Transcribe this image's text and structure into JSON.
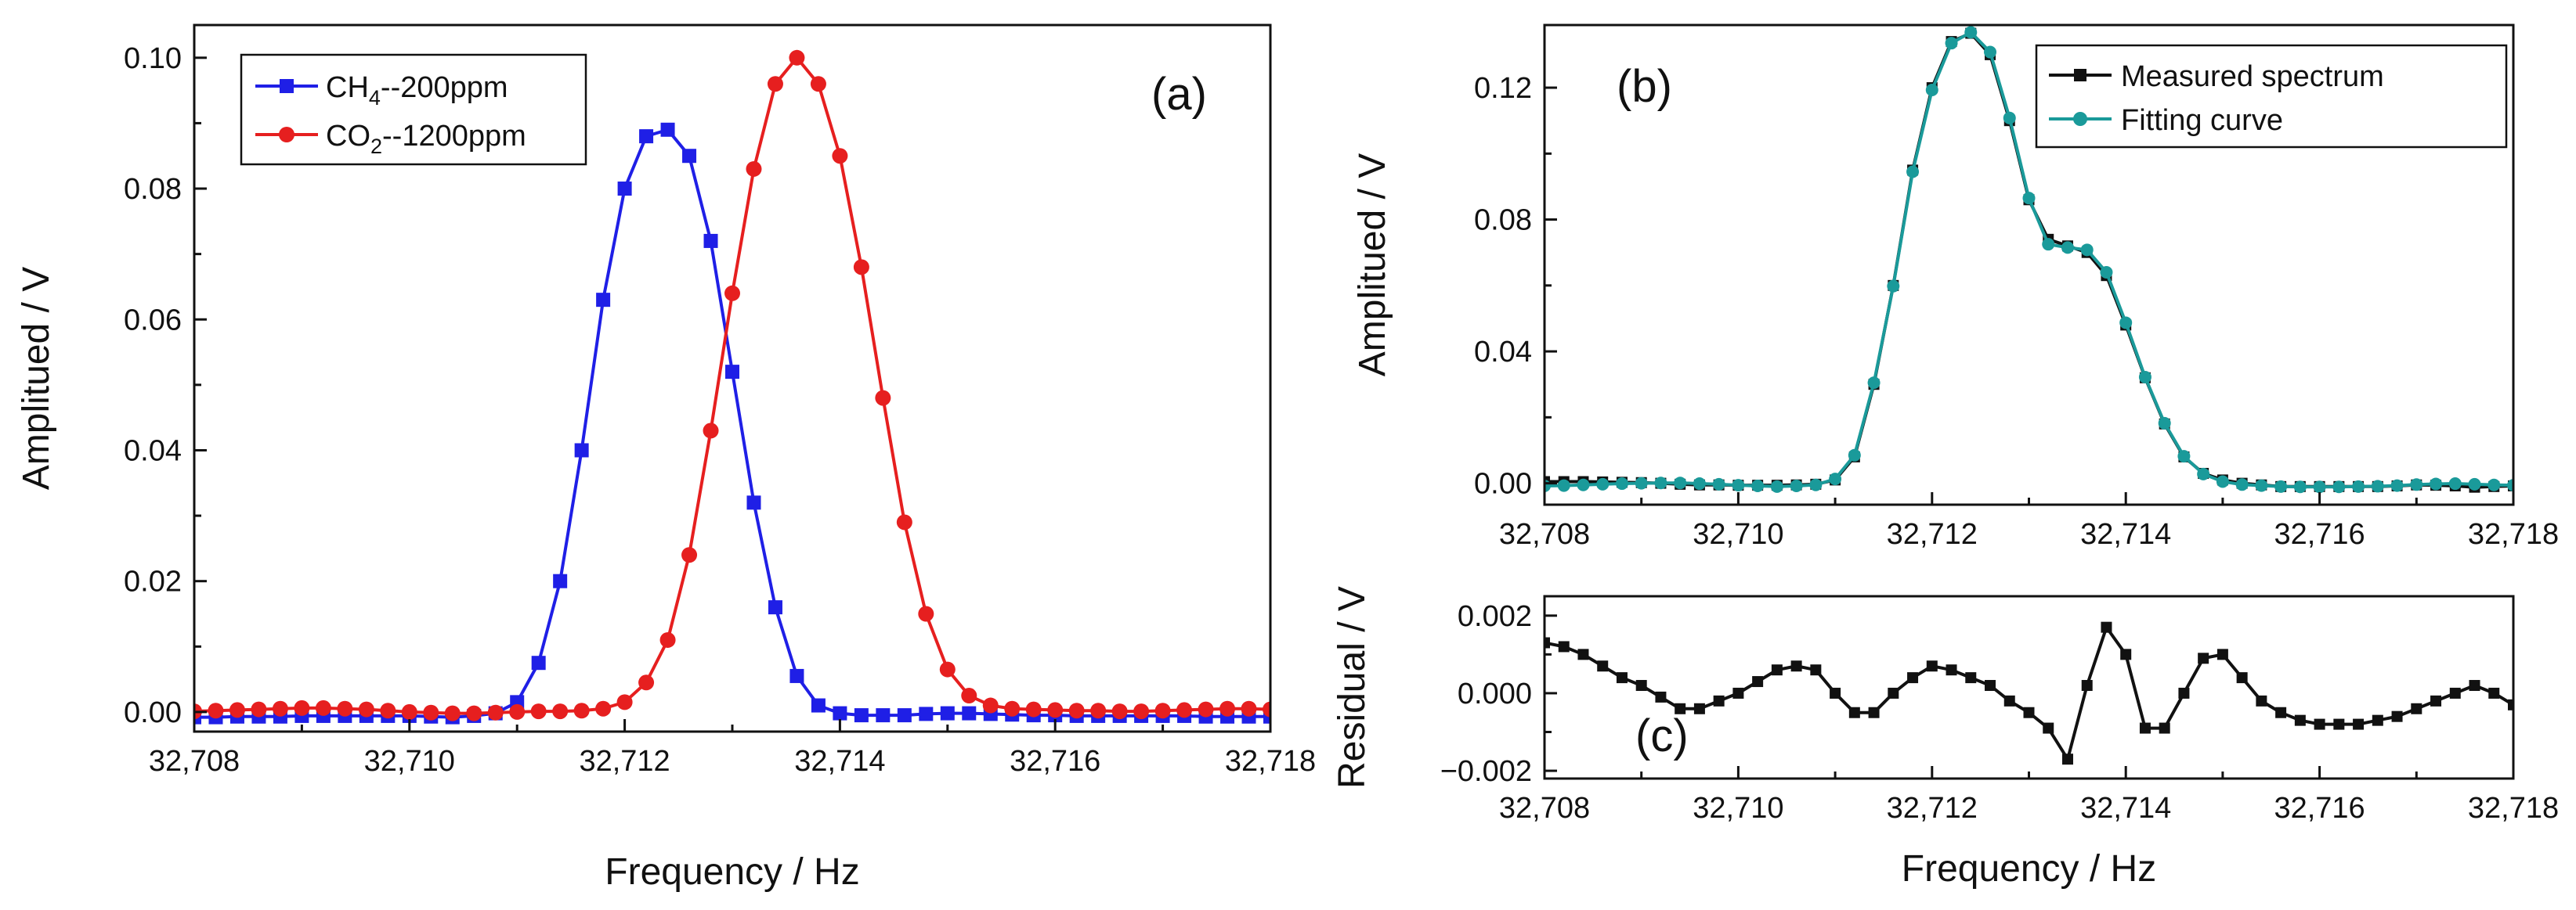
{
  "chart_data": [
    {
      "panel": "a",
      "type": "line",
      "panel_label": "(a)",
      "xlabel": "Frequency / Hz",
      "ylabel": "Amplitued / V",
      "xlim": [
        32708,
        32718
      ],
      "ylim": [
        -0.003,
        0.105
      ],
      "xticks": [
        32708,
        32710,
        32712,
        32714,
        32716,
        32718
      ],
      "xtick_labels": [
        "32,708",
        "32,710",
        "32,712",
        "32,714",
        "32,716",
        "32,718"
      ],
      "yticks": [
        0.0,
        0.02,
        0.04,
        0.06,
        0.08,
        0.1
      ],
      "ytick_labels": [
        "0.00",
        "0.02",
        "0.04",
        "0.06",
        "0.08",
        "0.10"
      ],
      "legend": {
        "placement": "top-left",
        "entries": [
          "CH4--200ppm",
          "CO2--1200ppm"
        ]
      },
      "legend_parts": [
        {
          "main": "CH",
          "sub": "4",
          "rest": "--200ppm"
        },
        {
          "main": "CO",
          "sub": "2",
          "rest": "--1200ppm"
        }
      ],
      "series": [
        {
          "name": "CH4--200ppm",
          "color": "#1f1fe6",
          "marker": "square",
          "x": [
            32708.0,
            32708.2,
            32708.4,
            32708.6,
            32708.8,
            32709.0,
            32709.2,
            32709.4,
            32709.6,
            32709.8,
            32710.0,
            32710.2,
            32710.4,
            32710.6,
            32710.8,
            32711.0,
            32711.2,
            32711.4,
            32711.6,
            32711.8,
            32712.0,
            32712.2,
            32712.4,
            32712.6,
            32712.8,
            32713.0,
            32713.2,
            32713.4,
            32713.6,
            32713.8,
            32714.0,
            32714.2,
            32714.4,
            32714.6,
            32714.8,
            32715.0,
            32715.2,
            32715.4,
            32715.6,
            32715.8,
            32716.0,
            32716.2,
            32716.4,
            32716.6,
            32716.8,
            32717.0,
            32717.2,
            32717.4,
            32717.6,
            32717.8,
            32718.0
          ],
          "y": [
            -0.0008,
            -0.0008,
            -0.0007,
            -0.0007,
            -0.0007,
            -0.0006,
            -0.0006,
            -0.0006,
            -0.0006,
            -0.0006,
            -0.0006,
            -0.0007,
            -0.0008,
            -0.0006,
            -0.0002,
            0.0015,
            0.0075,
            0.02,
            0.04,
            0.063,
            0.08,
            0.088,
            0.089,
            0.085,
            0.072,
            0.052,
            0.032,
            0.016,
            0.0055,
            0.001,
            -0.0002,
            -0.0005,
            -0.0005,
            -0.0005,
            -0.0003,
            -0.0002,
            -0.0002,
            -0.0003,
            -0.0004,
            -0.0005,
            -0.0005,
            -0.0006,
            -0.0006,
            -0.0006,
            -0.0006,
            -0.0006,
            -0.0006,
            -0.0007,
            -0.0007,
            -0.0007,
            -0.0007
          ]
        },
        {
          "name": "CO2--1200ppm",
          "color": "#e61f1f",
          "marker": "circle",
          "x": [
            32708.0,
            32708.2,
            32708.4,
            32708.6,
            32708.8,
            32709.0,
            32709.2,
            32709.4,
            32709.6,
            32709.8,
            32710.0,
            32710.2,
            32710.4,
            32710.6,
            32710.8,
            32711.0,
            32711.2,
            32711.4,
            32711.6,
            32711.8,
            32712.0,
            32712.2,
            32712.4,
            32712.6,
            32712.8,
            32713.0,
            32713.2,
            32713.4,
            32713.6,
            32713.8,
            32714.0,
            32714.2,
            32714.4,
            32714.6,
            32714.8,
            32715.0,
            32715.2,
            32715.4,
            32715.6,
            32715.8,
            32716.0,
            32716.2,
            32716.4,
            32716.6,
            32716.8,
            32717.0,
            32717.2,
            32717.4,
            32717.6,
            32717.8,
            32718.0
          ],
          "y": [
            0.0001,
            0.0002,
            0.0003,
            0.0004,
            0.0005,
            0.0006,
            0.0006,
            0.0005,
            0.0004,
            0.0002,
            0.0,
            -0.0001,
            -0.0002,
            -0.0002,
            -0.0001,
            0.0,
            0.0001,
            0.0001,
            0.0002,
            0.0005,
            0.0015,
            0.0045,
            0.011,
            0.024,
            0.043,
            0.064,
            0.083,
            0.096,
            0.1,
            0.096,
            0.085,
            0.068,
            0.048,
            0.029,
            0.015,
            0.0065,
            0.0025,
            0.001,
            0.0005,
            0.0004,
            0.0003,
            0.0002,
            0.0002,
            0.0001,
            0.0001,
            0.0002,
            0.0003,
            0.0004,
            0.0005,
            0.0005,
            0.0004
          ]
        }
      ]
    },
    {
      "panel": "b",
      "type": "line",
      "panel_label": "(b)",
      "xlabel": "",
      "ylabel": "Amplitued / V",
      "xlim": [
        32708,
        32718
      ],
      "ylim": [
        -0.0065,
        0.139
      ],
      "xticks": [
        32708,
        32710,
        32712,
        32714,
        32716,
        32718
      ],
      "xtick_labels": [
        "32,708",
        "32,710",
        "32,712",
        "32,714",
        "32,716",
        "32,718"
      ],
      "yticks": [
        0.0,
        0.04,
        0.08,
        0.12
      ],
      "ytick_labels": [
        "0.00",
        "0.04",
        "0.08",
        "0.12"
      ],
      "legend": {
        "placement": "top-right",
        "entries": [
          "Measured spectrum",
          "Fitting curve"
        ]
      },
      "series": [
        {
          "name": "Measured spectrum",
          "color": "#111111",
          "marker": "square",
          "x": [
            32708.0,
            32708.2,
            32708.4,
            32708.6,
            32708.8,
            32709.0,
            32709.2,
            32709.4,
            32709.6,
            32709.8,
            32710.0,
            32710.2,
            32710.4,
            32710.6,
            32710.8,
            32711.0,
            32711.2,
            32711.4,
            32711.6,
            32711.8,
            32712.0,
            32712.2,
            32712.4,
            32712.6,
            32712.8,
            32713.0,
            32713.2,
            32713.4,
            32713.6,
            32713.8,
            32714.0,
            32714.2,
            32714.4,
            32714.6,
            32714.8,
            32715.0,
            32715.2,
            32715.4,
            32715.6,
            32715.8,
            32716.0,
            32716.2,
            32716.4,
            32716.6,
            32716.8,
            32717.0,
            32717.2,
            32717.4,
            32717.6,
            32717.8,
            32718.0
          ],
          "y": [
            0.0005,
            0.0005,
            0.0005,
            0.0004,
            0.0003,
            0.0002,
            0.0,
            -0.0003,
            -0.0005,
            -0.0005,
            -0.0006,
            -0.0006,
            -0.0006,
            -0.0005,
            -0.0003,
            0.001,
            0.008,
            0.03,
            0.06,
            0.095,
            0.12,
            0.134,
            0.1365,
            0.13,
            0.11,
            0.086,
            0.074,
            0.072,
            0.07,
            0.063,
            0.048,
            0.032,
            0.018,
            0.008,
            0.003,
            0.001,
            0.0,
            -0.0005,
            -0.001,
            -0.001,
            -0.001,
            -0.001,
            -0.001,
            -0.001,
            -0.0008,
            -0.0005,
            -0.0006,
            -0.0008,
            -0.0012,
            -0.001,
            -0.0008
          ]
        },
        {
          "name": "Fitting curve",
          "color": "#1a9a9a",
          "marker": "circle",
          "x": [
            32708.0,
            32708.2,
            32708.4,
            32708.6,
            32708.8,
            32709.0,
            32709.2,
            32709.4,
            32709.6,
            32709.8,
            32710.0,
            32710.2,
            32710.4,
            32710.6,
            32710.8,
            32711.0,
            32711.2,
            32711.4,
            32711.6,
            32711.8,
            32712.0,
            32712.2,
            32712.4,
            32712.6,
            32712.8,
            32713.0,
            32713.2,
            32713.4,
            32713.6,
            32713.8,
            32714.0,
            32714.2,
            32714.4,
            32714.6,
            32714.8,
            32715.0,
            32715.2,
            32715.4,
            32715.6,
            32715.8,
            32716.0,
            32716.2,
            32716.4,
            32716.6,
            32716.8,
            32717.0,
            32717.2,
            32717.4,
            32717.6,
            32717.8,
            32718.0
          ],
          "y": [
            -0.0008,
            -0.0007,
            -0.0005,
            -0.0003,
            -0.0001,
            0.0,
            0.0001,
            0.0001,
            -0.0001,
            -0.0003,
            -0.0006,
            -0.0008,
            -0.001,
            -0.0008,
            -0.0005,
            0.0013,
            0.0085,
            0.0305,
            0.0598,
            0.0945,
            0.1193,
            0.1335,
            0.1368,
            0.1308,
            0.1108,
            0.0865,
            0.0725,
            0.0715,
            0.0708,
            0.064,
            0.0487,
            0.0322,
            0.0182,
            0.0082,
            0.0028,
            0.0005,
            -0.0004,
            -0.0007,
            -0.001,
            -0.0011,
            -0.0011,
            -0.0011,
            -0.001,
            -0.0009,
            -0.0007,
            -0.0004,
            -0.0002,
            -0.0001,
            -0.0003,
            -0.0005,
            -0.0006
          ]
        }
      ]
    },
    {
      "panel": "c",
      "type": "line",
      "panel_label": "(c)",
      "xlabel": "Frequency / Hz",
      "ylabel": "Residual / V",
      "xlim": [
        32708,
        32718
      ],
      "ylim": [
        -0.0022,
        0.0025
      ],
      "xticks": [
        32708,
        32710,
        32712,
        32714,
        32716,
        32718
      ],
      "xtick_labels": [
        "32,708",
        "32,710",
        "32,712",
        "32,714",
        "32,716",
        "32,718"
      ],
      "yticks": [
        -0.002,
        0.0,
        0.002
      ],
      "ytick_labels": [
        "−0.002",
        "0.000",
        "0.002"
      ],
      "series": [
        {
          "name": "Residual",
          "color": "#111111",
          "marker": "square",
          "x": [
            32708.0,
            32708.2,
            32708.4,
            32708.6,
            32708.8,
            32709.0,
            32709.2,
            32709.4,
            32709.6,
            32709.8,
            32710.0,
            32710.2,
            32710.4,
            32710.6,
            32710.8,
            32711.0,
            32711.2,
            32711.4,
            32711.6,
            32711.8,
            32712.0,
            32712.2,
            32712.4,
            32712.6,
            32712.8,
            32713.0,
            32713.2,
            32713.4,
            32713.6,
            32713.8,
            32714.0,
            32714.2,
            32714.4,
            32714.6,
            32714.8,
            32715.0,
            32715.2,
            32715.4,
            32715.6,
            32715.8,
            32716.0,
            32716.2,
            32716.4,
            32716.6,
            32716.8,
            32717.0,
            32717.2,
            32717.4,
            32717.6,
            32717.8,
            32718.0
          ],
          "y": [
            0.0013,
            0.0012,
            0.001,
            0.0007,
            0.0004,
            0.0002,
            -0.0001,
            -0.0004,
            -0.0004,
            -0.0002,
            0.0,
            0.0003,
            0.0006,
            0.0007,
            0.0006,
            0.0,
            -0.0005,
            -0.0005,
            0.0,
            0.0004,
            0.0007,
            0.0006,
            0.0004,
            0.0002,
            -0.0002,
            -0.0005,
            -0.0009,
            -0.0017,
            0.0002,
            0.0017,
            0.001,
            -0.0009,
            -0.0009,
            0.0,
            0.0009,
            0.001,
            0.0004,
            -0.0002,
            -0.0005,
            -0.0007,
            -0.0008,
            -0.0008,
            -0.0008,
            -0.0007,
            -0.0006,
            -0.0004,
            -0.0002,
            0.0,
            0.0002,
            0.0,
            -0.0003
          ]
        }
      ]
    }
  ]
}
